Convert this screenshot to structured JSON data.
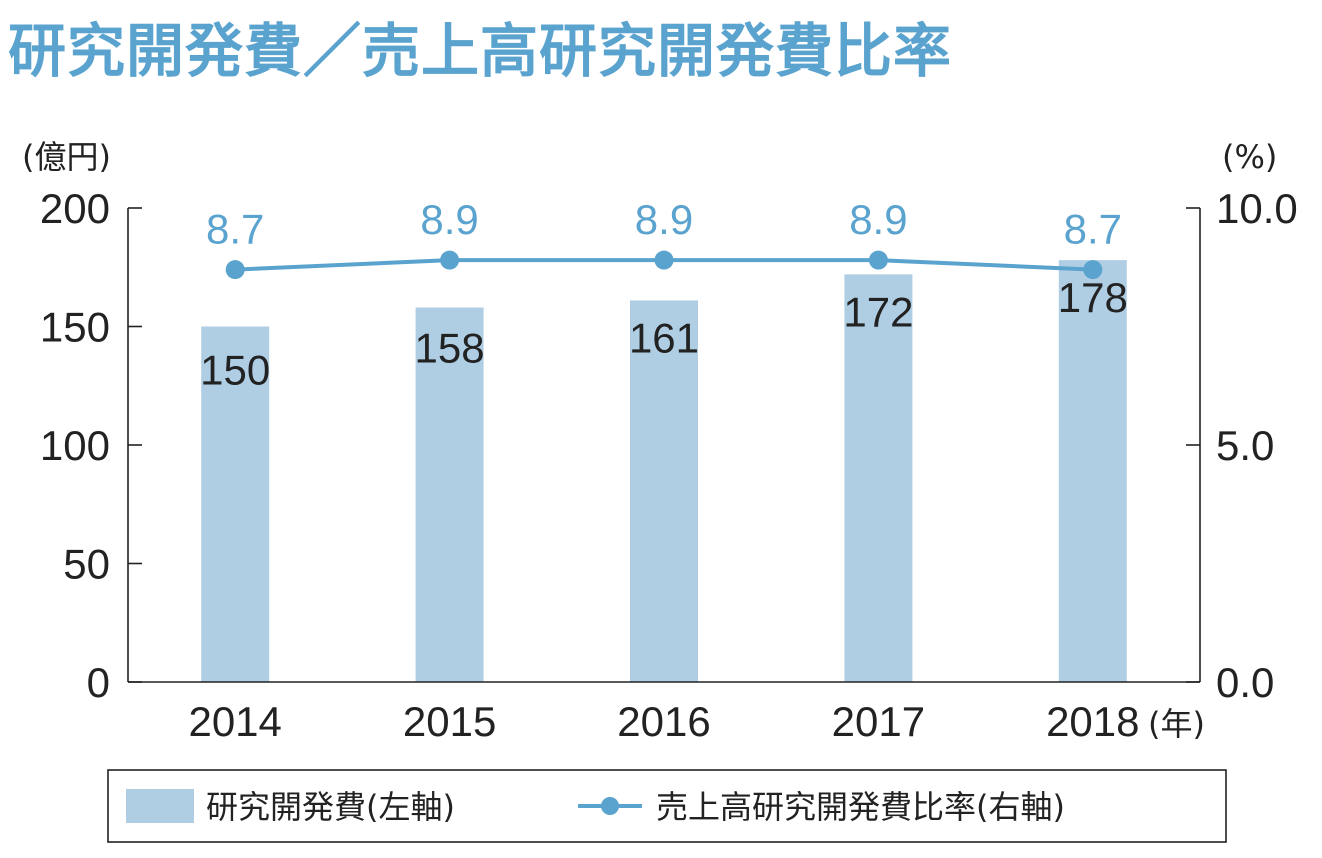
{
  "title": "研究開発費／売上高研究開発費比率",
  "chart_data": {
    "type": "bar",
    "categories": [
      "2014",
      "2015",
      "2016",
      "2017",
      "2018"
    ],
    "x_unit": "(年)",
    "left_axis": {
      "unit": "(億円)",
      "ylim": [
        0,
        200
      ],
      "ticks": [
        "0",
        "50",
        "100",
        "150",
        "200"
      ]
    },
    "right_axis": {
      "unit": "(%)",
      "ylim": [
        0,
        10
      ],
      "ticks": [
        "0.0",
        "5.0",
        "10.0"
      ]
    },
    "series": [
      {
        "name": "研究開発費(左軸)",
        "type": "bar",
        "axis": "left",
        "values": [
          150,
          158,
          161,
          172,
          178
        ],
        "labels": [
          "150",
          "158",
          "161",
          "172",
          "178"
        ],
        "color": "#afcee4"
      },
      {
        "name": "売上高研究開発費比率(右軸)",
        "type": "line",
        "axis": "right",
        "values": [
          8.7,
          8.9,
          8.9,
          8.9,
          8.7
        ],
        "labels": [
          "8.7",
          "8.9",
          "8.9",
          "8.9",
          "8.7"
        ],
        "color": "#5aa3cf"
      }
    ],
    "legend_position": "bottom"
  }
}
